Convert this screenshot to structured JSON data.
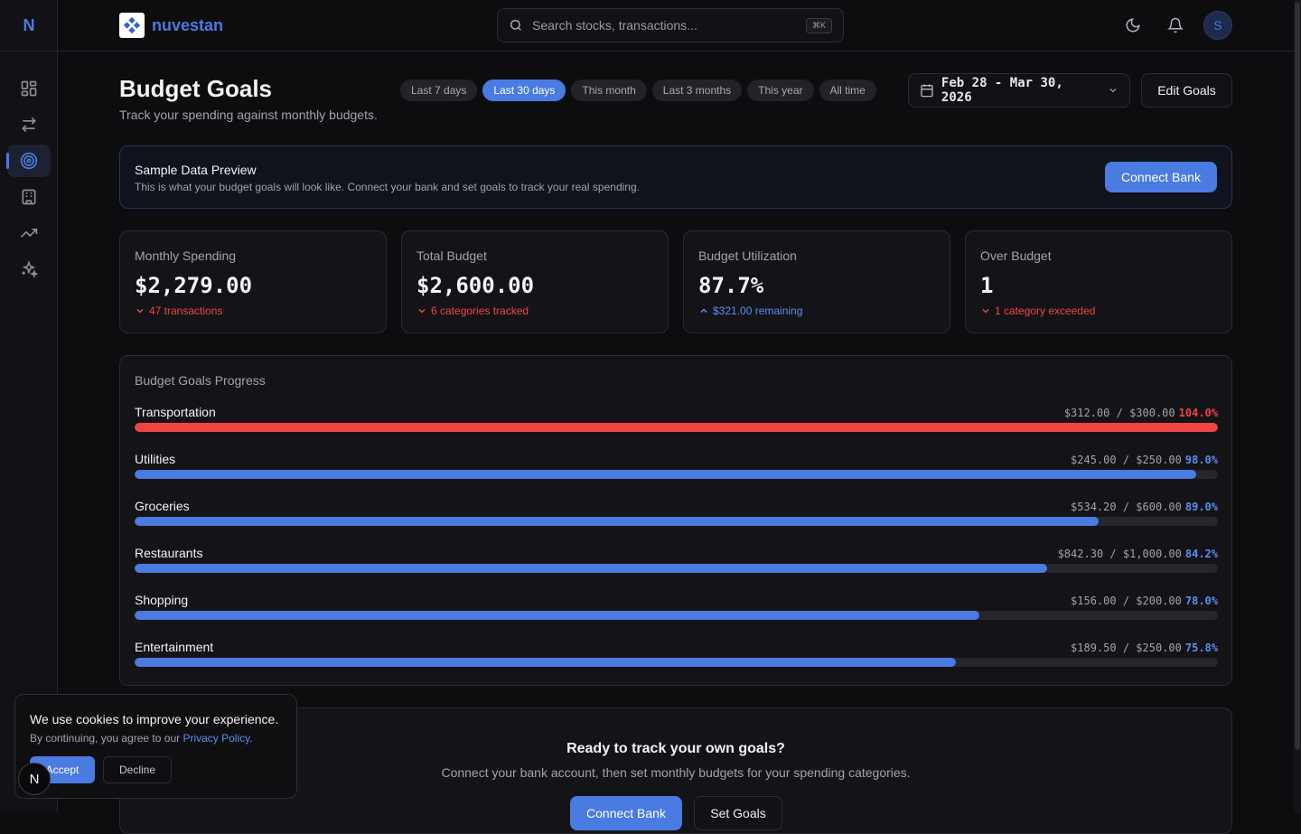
{
  "app": {
    "rail_logo": "N",
    "brand_name": "nuvestan",
    "avatar_initial": "S"
  },
  "search": {
    "placeholder": "Search stocks, transactions...",
    "shortcut": "⌘K"
  },
  "sidebar": {
    "items": [
      {
        "icon": "dashboard-icon",
        "active": false
      },
      {
        "icon": "transfer-icon",
        "active": false
      },
      {
        "icon": "target-icon",
        "active": true
      },
      {
        "icon": "bank-icon",
        "active": false
      },
      {
        "icon": "trending-up-icon",
        "active": false
      },
      {
        "icon": "sparkles-icon",
        "active": false
      }
    ]
  },
  "header": {
    "title": "Budget Goals",
    "subtitle": "Track your spending against monthly budgets.",
    "ranges": [
      "Last 7 days",
      "Last 30 days",
      "This month",
      "Last 3 months",
      "This year",
      "All time"
    ],
    "active_range": "Last 30 days",
    "date_range": "Feb 28 - Mar 30, 2026",
    "edit_label": "Edit Goals"
  },
  "banner": {
    "title": "Sample Data Preview",
    "text": "This is what your budget goals will look like. Connect your bank and set goals to track your real spending.",
    "button": "Connect Bank"
  },
  "stats": [
    {
      "label": "Monthly Spending",
      "value": "$2,279.00",
      "meta": "47 transactions",
      "trend": "down"
    },
    {
      "label": "Total Budget",
      "value": "$2,600.00",
      "meta": "6 categories tracked",
      "trend": "down"
    },
    {
      "label": "Budget Utilization",
      "value": "87.7%",
      "meta": "$321.00 remaining",
      "trend": "up"
    },
    {
      "label": "Over Budget",
      "value": "1",
      "meta": "1 category exceeded",
      "trend": "down"
    }
  ],
  "progress": {
    "title": "Budget Goals Progress",
    "goals": [
      {
        "name": "Transportation",
        "spent": "$312.00",
        "budget": "$300.00",
        "pct_label": "104.0%",
        "pct": 104.0
      },
      {
        "name": "Utilities",
        "spent": "$245.00",
        "budget": "$250.00",
        "pct_label": "98.0%",
        "pct": 98.0
      },
      {
        "name": "Groceries",
        "spent": "$534.20",
        "budget": "$600.00",
        "pct_label": "89.0%",
        "pct": 89.0
      },
      {
        "name": "Restaurants",
        "spent": "$842.30",
        "budget": "$1,000.00",
        "pct_label": "84.2%",
        "pct": 84.2
      },
      {
        "name": "Shopping",
        "spent": "$156.00",
        "budget": "$200.00",
        "pct_label": "78.0%",
        "pct": 78.0
      },
      {
        "name": "Entertainment",
        "spent": "$189.50",
        "budget": "$250.00",
        "pct_label": "75.8%",
        "pct": 75.8
      }
    ]
  },
  "cta": {
    "title": "Ready to track your own goals?",
    "text": "Connect your bank account, then set monthly budgets for your spending categories.",
    "primary": "Connect Bank",
    "secondary": "Set Goals"
  },
  "cookie": {
    "title": "We use cookies to improve your experience.",
    "text": "By continuing, you agree to our",
    "link": "Privacy Policy",
    "period": ".",
    "accept": "Accept",
    "decline": "Decline"
  },
  "fab_label": "N",
  "colors": {
    "accent": "#4a7be0",
    "danger": "#ef4444",
    "background": "#0d0d10"
  }
}
